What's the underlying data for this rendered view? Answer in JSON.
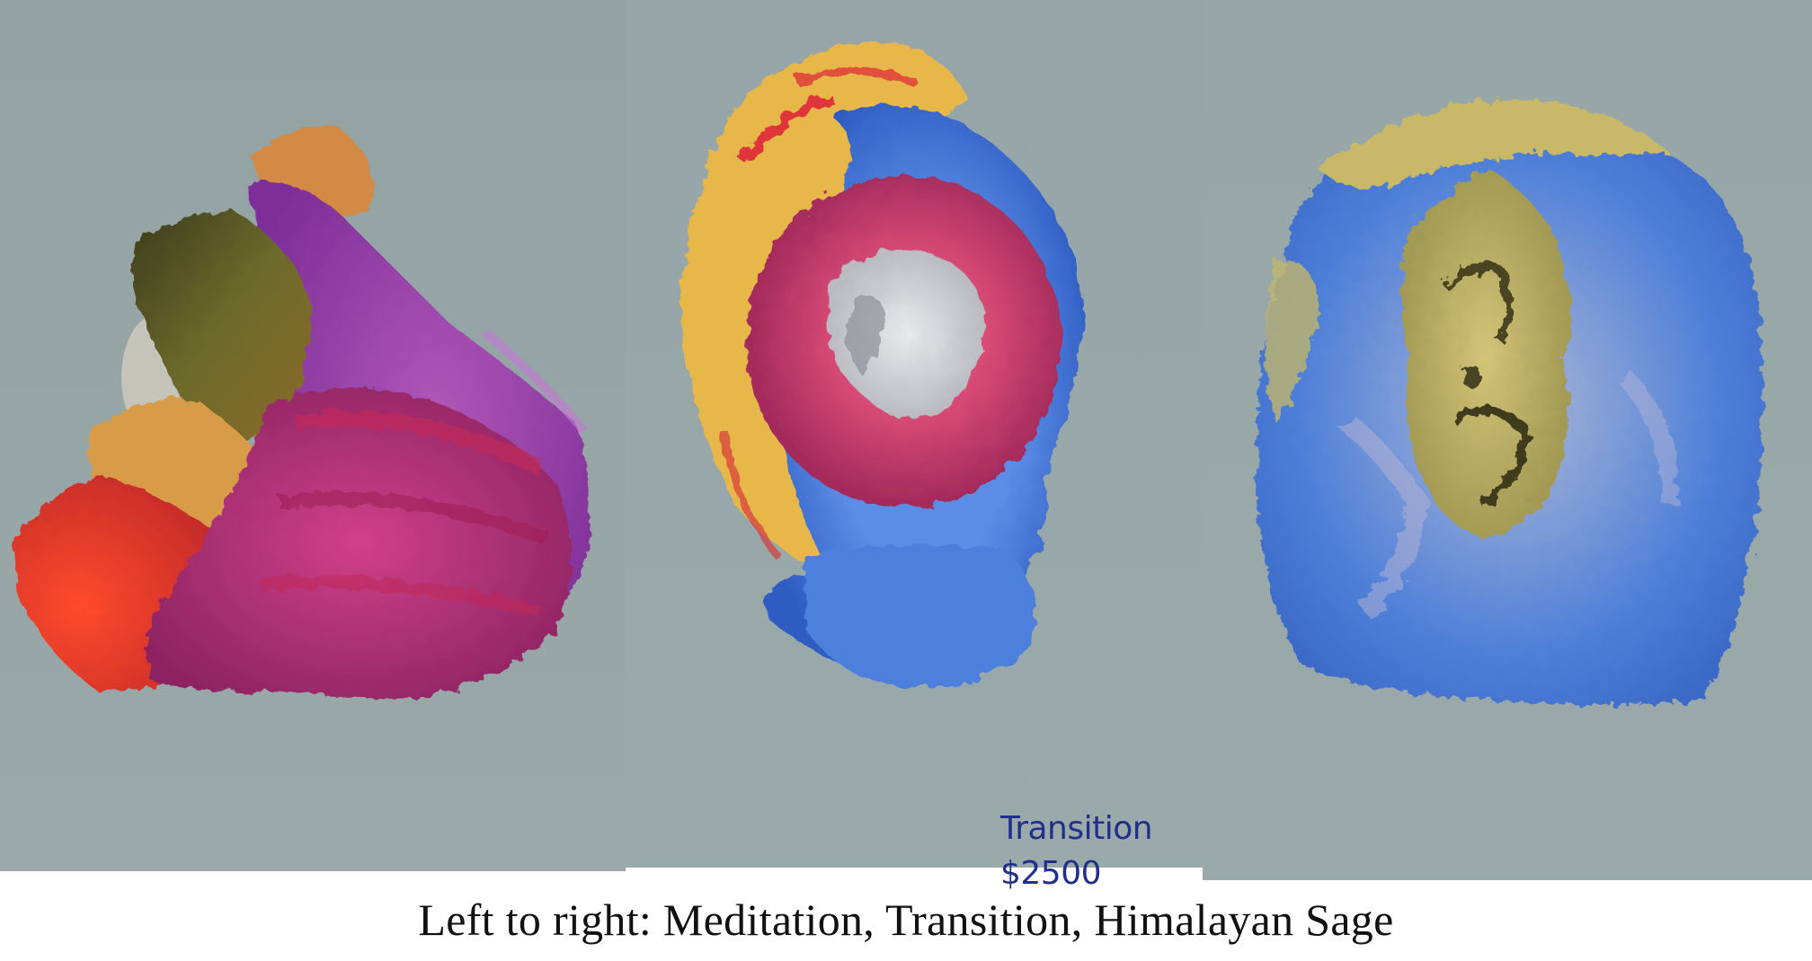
{
  "image": {
    "panels": [
      {
        "name": "meditation-sculpture",
        "background": "#95a3a4",
        "palette": [
          "#e83a2a",
          "#9a3fb0",
          "#c9368a",
          "#d7a14d",
          "#5b5a2a"
        ]
      },
      {
        "name": "transition-sculpture",
        "background": "#97a6a8",
        "palette": [
          "#e8b43f",
          "#3e6fd2",
          "#c73a6a",
          "#d64660",
          "#c9c9cc"
        ]
      },
      {
        "name": "himalayan-sage-sculpture",
        "background": "#98a7a8",
        "palette": [
          "#4a7fd8",
          "#c4b56a",
          "#8aa0d0",
          "#6e6b39"
        ]
      }
    ]
  },
  "tag": {
    "title": "Transition",
    "price": "$2500"
  },
  "caption": "Left to right: Meditation, Transition, Himalayan Sage"
}
